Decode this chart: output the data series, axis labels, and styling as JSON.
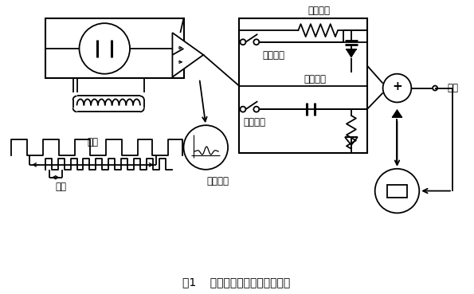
{
  "title": "图1    双频矩形波励磁测量原理图",
  "labels": {
    "low_freq": "低频",
    "high_freq": "高频",
    "low_sample": "低频采样",
    "high_sample": "高频采样",
    "integrator": "积分电路",
    "differentiator": "微分电路",
    "fluid_noise": "流体噪声",
    "output": "输出"
  },
  "bg_color": "#ffffff",
  "line_color": "#000000"
}
